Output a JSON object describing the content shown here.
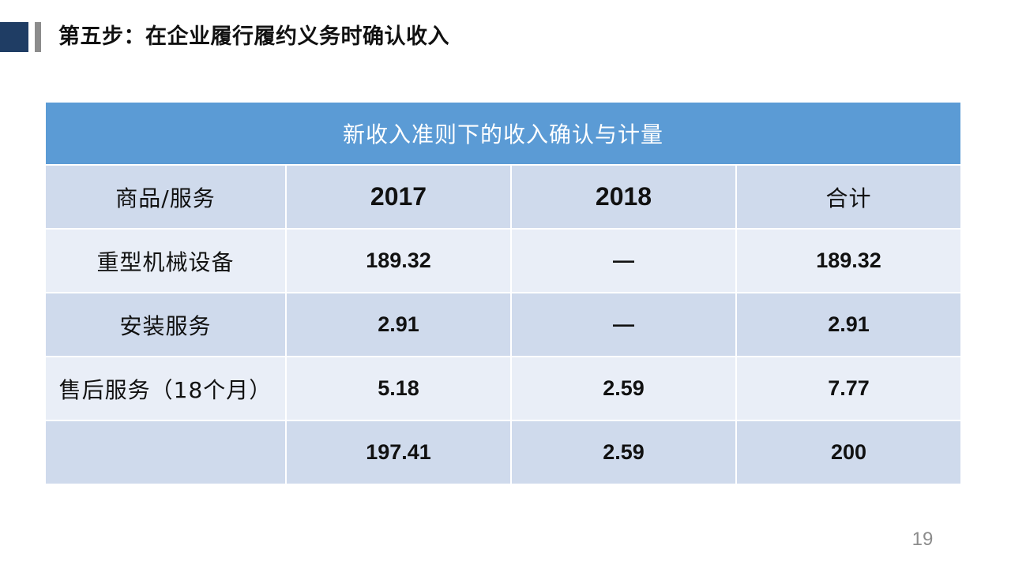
{
  "slide": {
    "title": "第五步：在企业履行履约义务时确认收入",
    "page_number": "19"
  },
  "table": {
    "caption": "新收入准则下的收入确认与计量",
    "columns": [
      "商品/服务",
      "2017",
      "2018",
      "合计"
    ],
    "rows": [
      [
        "重型机械设备",
        "189.32",
        "—",
        "189.32"
      ],
      [
        "安装服务",
        "2.91",
        "—",
        "2.91"
      ],
      [
        "售后服务（18个月）",
        "5.18",
        "2.59",
        "7.77"
      ],
      [
        "",
        "197.41",
        "2.59",
        "200"
      ]
    ]
  },
  "colors": {
    "caption_bg": "#5b9bd5",
    "band_dark": "#cfdaec",
    "band_light": "#e9eef7",
    "accent_dark": "#1f3d64",
    "accent_gray": "#8c8c8c"
  }
}
